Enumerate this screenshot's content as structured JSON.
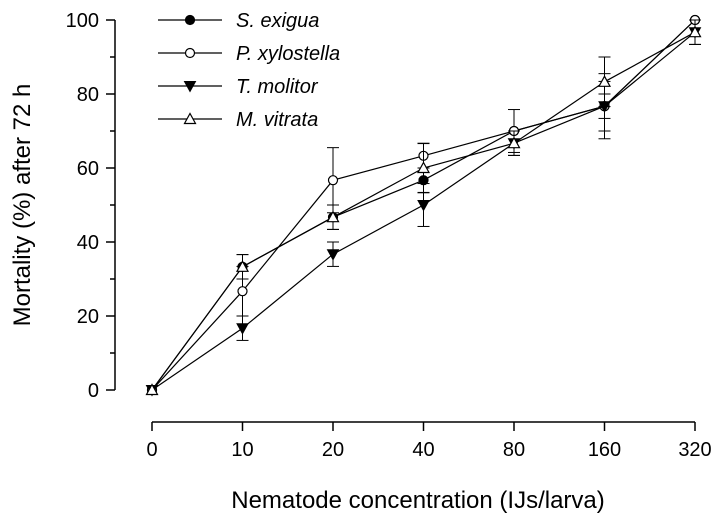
{
  "chart_data": {
    "type": "line",
    "title": "",
    "xlabel": "Nematode concentration (IJs/larva)",
    "ylabel": "Mortality (%) after 72 h",
    "categories": [
      "0",
      "10",
      "20",
      "40",
      "80",
      "160",
      "320"
    ],
    "ylim": [
      0,
      100
    ],
    "yticks": [
      0,
      20,
      40,
      60,
      80,
      100
    ],
    "grid": false,
    "legend_position": "top-left",
    "series": [
      {
        "name": "S. exigua",
        "marker": "filled-circle",
        "values": [
          0,
          33.3,
          46.7,
          56.7,
          70,
          76.7,
          100
        ],
        "errors": [
          0,
          3.3,
          3.3,
          3.3,
          0,
          6.7,
          0
        ]
      },
      {
        "name": "P. xylostella",
        "marker": "open-circle",
        "values": [
          0,
          26.7,
          56.7,
          63.3,
          70,
          76.7,
          100
        ],
        "errors": [
          0,
          6.7,
          8.8,
          3.3,
          5.8,
          8.8,
          0
        ]
      },
      {
        "name": "T. molitor",
        "marker": "filled-triangle-down",
        "values": [
          0,
          16.7,
          36.7,
          50,
          66.7,
          76.7,
          96.7
        ],
        "errors": [
          0,
          3.3,
          3.3,
          5.8,
          3.3,
          3.3,
          3.3
        ]
      },
      {
        "name": "M. vitrata",
        "marker": "open-triangle-up",
        "values": [
          0,
          33.3,
          46.7,
          60,
          66.7,
          83.3,
          96.7
        ],
        "errors": [
          0,
          3.3,
          3.3,
          6.7,
          3.3,
          6.7,
          3.3
        ]
      }
    ]
  }
}
